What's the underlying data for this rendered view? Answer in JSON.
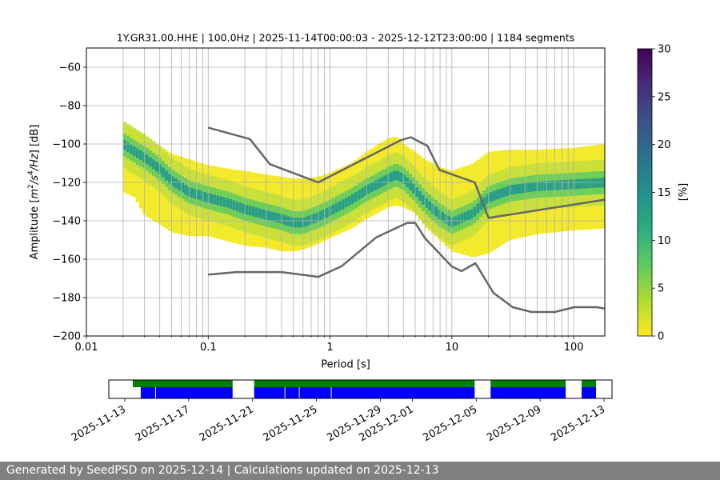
{
  "chart_data": {
    "type": "heatmap",
    "title": "1Y.GR31.00.HHE | 100.0Hz | 2025-11-14T00:00:03 - 2025-12-12T23:00:00 | 1184 segments",
    "xlabel": "Period [s]",
    "ylabel_parts": {
      "prefix": "Amplitude [",
      "m": "m",
      "exp2": "2",
      "slash": "/s",
      "exp4": "4",
      "hz": "/Hz",
      "suffix": "] [dB]"
    },
    "x_scale": "log",
    "xlim": [
      0.01,
      180
    ],
    "ylim": [
      -200,
      -50
    ],
    "x_ticks": [
      {
        "value": 0.01,
        "label": "0.01"
      },
      {
        "value": 0.1,
        "label": "0.1"
      },
      {
        "value": 1,
        "label": "1"
      },
      {
        "value": 10,
        "label": "10"
      },
      {
        "value": 100,
        "label": "100"
      }
    ],
    "y_ticks": [
      {
        "value": -60,
        "label": "−60"
      },
      {
        "value": -80,
        "label": "−80"
      },
      {
        "value": -100,
        "label": "−100"
      },
      {
        "value": -120,
        "label": "−120"
      },
      {
        "value": -140,
        "label": "−140"
      },
      {
        "value": -160,
        "label": "−160"
      },
      {
        "value": -180,
        "label": "−180"
      },
      {
        "value": -200,
        "label": "−200"
      }
    ],
    "grid": true,
    "colormap": "viridis_r",
    "colorbar": {
      "label": "[%]",
      "range": [
        0,
        30
      ],
      "ticks": [
        {
          "value": 0,
          "label": "0"
        },
        {
          "value": 5,
          "label": "5"
        },
        {
          "value": 10,
          "label": "10"
        },
        {
          "value": 15,
          "label": "15"
        },
        {
          "value": 20,
          "label": "20"
        },
        {
          "value": 25,
          "label": "25"
        },
        {
          "value": 30,
          "label": "30"
        }
      ]
    },
    "psd_mode": {
      "x": [
        0.02,
        0.025,
        0.03,
        0.04,
        0.05,
        0.07,
        0.1,
        0.15,
        0.2,
        0.3,
        0.4,
        0.5,
        0.6,
        0.8,
        1.0,
        1.5,
        2.0,
        3.0,
        3.5,
        4.0,
        5.0,
        6.0,
        8.0,
        10,
        15,
        20,
        30,
        50,
        100,
        180
      ],
      "y": [
        -100,
        -104,
        -107,
        -113,
        -119,
        -125,
        -128,
        -131,
        -134,
        -137,
        -139,
        -141,
        -141,
        -138,
        -135,
        -129,
        -124,
        -118,
        -116,
        -118,
        -124,
        -130,
        -137,
        -141,
        -136,
        -128,
        -124,
        -122,
        -121,
        -120
      ]
    },
    "density_band": {
      "x": [
        0.02,
        0.025,
        0.03,
        0.04,
        0.05,
        0.07,
        0.1,
        0.15,
        0.2,
        0.3,
        0.4,
        0.5,
        0.6,
        0.8,
        1.0,
        1.5,
        2.0,
        3.0,
        3.5,
        4.0,
        5.0,
        6.0,
        8.0,
        10,
        15,
        20,
        30,
        50,
        100,
        180
      ],
      "low": [
        -125,
        -128,
        -137,
        -142,
        -146,
        -148,
        -148,
        -151,
        -153,
        -154,
        -156,
        -156,
        -155,
        -152,
        -149,
        -144,
        -139,
        -133,
        -132,
        -133,
        -136,
        -143,
        -150,
        -156,
        -159,
        -157,
        -150,
        -147,
        -145,
        -144
      ],
      "high": [
        -88,
        -92,
        -96,
        -101,
        -105,
        -108,
        -111,
        -113,
        -114,
        -116,
        -117,
        -118,
        -118,
        -117,
        -115,
        -110,
        -104,
        -97,
        -96,
        -100,
        -104,
        -108,
        -112,
        -114,
        -110,
        -104,
        -103,
        -103,
        -102,
        -100
      ]
    },
    "nhnm": {
      "x": [
        0.1,
        0.22,
        0.32,
        0.8,
        3.8,
        4.6,
        6.3,
        7.9,
        15.4,
        20,
        180
      ],
      "y": [
        -91.5,
        -97.4,
        -110.5,
        -120,
        -98,
        -96.5,
        -101,
        -113.5,
        -120,
        -138.5,
        -129
      ]
    },
    "nlnm": {
      "x": [
        0.1,
        0.17,
        0.4,
        0.8,
        1.24,
        2.4,
        4.3,
        5.0,
        6.0,
        10,
        12,
        15.6,
        21.9,
        31.6,
        45,
        70,
        101,
        154,
        180
      ],
      "y": [
        -168,
        -166.7,
        -166.7,
        -169.2,
        -163.7,
        -148.6,
        -141.1,
        -141.1,
        -149,
        -163.8,
        -166.2,
        -162.1,
        -177.5,
        -185,
        -187.5,
        -187.5,
        -185,
        -185,
        -185.7
      ]
    }
  },
  "data_availability": {
    "date_ticks": [
      {
        "date": "2025-11-13",
        "label": "2025-11-13"
      },
      {
        "date": "2025-11-17",
        "label": "2025-11-17"
      },
      {
        "date": "2025-11-21",
        "label": "2025-11-21"
      },
      {
        "date": "2025-11-25",
        "label": "2025-11-25"
      },
      {
        "date": "2025-11-29",
        "label": "2025-11-29"
      },
      {
        "date": "2025-12-01",
        "label": "2025-12-01"
      },
      {
        "date": "2025-12-05",
        "label": "2025-12-05"
      },
      {
        "date": "2025-12-09",
        "label": "2025-12-09"
      },
      {
        "date": "2025-12-13",
        "label": "2025-12-13"
      }
    ],
    "xlim": [
      "2025-11-12",
      "2025-12-13.5"
    ],
    "processed_segments": [
      [
        "2025-11-13.5",
        "2025-11-19.75"
      ],
      [
        "2025-11-21.1",
        "2025-12-04.9"
      ],
      [
        "2025-12-05.9",
        "2025-12-10.6"
      ],
      [
        "2025-12-11.6",
        "2025-12-12.5"
      ]
    ],
    "data_segments": [
      [
        "2025-11-14",
        "2025-11-14.9"
      ],
      [
        "2025-11-14.95",
        "2025-11-19.75"
      ],
      [
        "2025-11-21.1",
        "2025-11-23.0"
      ],
      [
        "2025-11-23.05",
        "2025-11-23.9"
      ],
      [
        "2025-11-23.95",
        "2025-11-25.9"
      ],
      [
        "2025-11-25.95",
        "2025-12-04.9"
      ],
      [
        "2025-12-05.9",
        "2025-12-10.6"
      ],
      [
        "2025-12-11.6",
        "2025-12-12.5"
      ]
    ],
    "colors": {
      "processed": "#008000",
      "data": "#0000ff"
    }
  },
  "footer": {
    "text": "Generated by SeedPSD on 2025-12-14 | Calculations updated on 2025-12-13",
    "background": "#808080"
  }
}
